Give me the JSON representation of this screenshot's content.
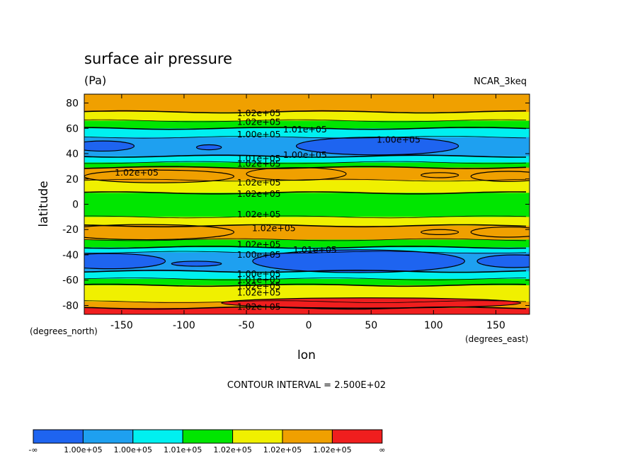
{
  "chart_data": {
    "type": "contour",
    "title": "surface air pressure",
    "units": "(Pa)",
    "dataset": "NCAR_3keq",
    "xlabel": "lon",
    "ylabel": "latitude",
    "x_unit_label": "(degrees_east)",
    "y_unit_label": "(degrees_north)",
    "xlim": [
      -180,
      177
    ],
    "ylim": [
      -87,
      87
    ],
    "x_ticks": [
      -150,
      -100,
      -50,
      0,
      50,
      100,
      150
    ],
    "y_ticks": [
      -80,
      -60,
      -40,
      -20,
      0,
      20,
      40,
      60,
      80
    ],
    "contour_interval_text": "CONTOUR INTERVAL = 2.500E+02",
    "legend": {
      "colors": [
        "#1e64f0",
        "#1ea0f0",
        "#00f0f0",
        "#00e600",
        "#f0f000",
        "#f0a000",
        "#f01e1e"
      ],
      "labels": [
        "-∞",
        "1.00e+05",
        "1.00e+05",
        "1.01e+05",
        "1.02e+05",
        "1.02e+05",
        "1.02e+05",
        "∞"
      ]
    },
    "zonal_bands": [
      {
        "lat_from": 87,
        "lat_to": 73,
        "level": 5
      },
      {
        "lat_from": 73,
        "lat_to": 66,
        "level": 4
      },
      {
        "lat_from": 66,
        "lat_to": 60,
        "level": 3
      },
      {
        "lat_from": 60,
        "lat_to": 53,
        "level": 2
      },
      {
        "lat_from": 53,
        "lat_to": 38,
        "level": 1
      },
      {
        "lat_from": 38,
        "lat_to": 33,
        "level": 2
      },
      {
        "lat_from": 33,
        "lat_to": 29,
        "level": 3
      },
      {
        "lat_from": 29,
        "lat_to": 19,
        "level": 5
      },
      {
        "lat_from": 19,
        "lat_to": 9,
        "level": 4
      },
      {
        "lat_from": 9,
        "lat_to": -10,
        "level": 3
      },
      {
        "lat_from": -10,
        "lat_to": -17,
        "level": 4
      },
      {
        "lat_from": -17,
        "lat_to": -28,
        "level": 5
      },
      {
        "lat_from": -28,
        "lat_to": -34,
        "level": 3
      },
      {
        "lat_from": -34,
        "lat_to": -38,
        "level": 2
      },
      {
        "lat_from": -38,
        "lat_to": -53,
        "level": 1
      },
      {
        "lat_from": -53,
        "lat_to": -59,
        "level": 2
      },
      {
        "lat_from": -59,
        "lat_to": -64,
        "level": 3
      },
      {
        "lat_from": -64,
        "lat_to": -77,
        "level": 4
      },
      {
        "lat_from": -77,
        "lat_to": -82,
        "level": 5
      },
      {
        "lat_from": -82,
        "lat_to": -87,
        "level": 6
      }
    ],
    "blobs": [
      {
        "lon": -165,
        "lat": 46,
        "rlon": 25,
        "rlat": 4,
        "level": 0
      },
      {
        "lon": 55,
        "lat": 46,
        "rlon": 65,
        "rlat": 7,
        "level": 0
      },
      {
        "lon": -80,
        "lat": 45,
        "rlon": 10,
        "rlat": 2,
        "level": 0
      },
      {
        "lon": -160,
        "lat": -45,
        "rlon": 45,
        "rlat": 6,
        "level": 0
      },
      {
        "lon": 40,
        "lat": -45,
        "rlon": 85,
        "rlat": 9,
        "level": 0
      },
      {
        "lon": 165,
        "lat": -45,
        "rlon": 30,
        "rlat": 5,
        "level": 0
      },
      {
        "lon": -90,
        "lat": -47,
        "rlon": 20,
        "rlat": 2,
        "level": 0
      },
      {
        "lon": -120,
        "lat": 22,
        "rlon": 60,
        "rlat": 5,
        "level": 5
      },
      {
        "lon": -10,
        "lat": 24,
        "rlon": 40,
        "rlat": 5,
        "level": 5
      },
      {
        "lon": 105,
        "lat": 23,
        "rlon": 15,
        "rlat": 2,
        "level": 5
      },
      {
        "lon": 160,
        "lat": 22,
        "rlon": 30,
        "rlat": 4,
        "level": 5
      },
      {
        "lon": -130,
        "lat": -22,
        "rlon": 70,
        "rlat": 6,
        "level": 5
      },
      {
        "lon": 105,
        "lat": -22,
        "rlon": 15,
        "rlat": 2,
        "level": 5
      },
      {
        "lon": 160,
        "lat": -22,
        "rlon": 30,
        "rlat": 4,
        "level": 5
      },
      {
        "lon": 50,
        "lat": -78,
        "rlon": 120,
        "rlat": 4,
        "level": 6
      }
    ],
    "contour_labels": [
      {
        "text": "1.02e+05",
        "lon": -40,
        "lat": 72
      },
      {
        "text": "1.02e+05",
        "lon": -40,
        "lat": 65
      },
      {
        "text": "1.00e+05",
        "lon": -40,
        "lat": 55
      },
      {
        "text": "1.01e+05",
        "lon": -3,
        "lat": 59
      },
      {
        "text": "1.00e+05",
        "lon": 72,
        "lat": 51
      },
      {
        "text": "1.00e+05",
        "lon": -3,
        "lat": 39
      },
      {
        "text": "1.01e+05",
        "lon": -40,
        "lat": 36
      },
      {
        "text": "1.02e+05",
        "lon": -40,
        "lat": 32
      },
      {
        "text": "1.02e+05",
        "lon": -138,
        "lat": 25
      },
      {
        "text": "1.02e+05",
        "lon": -40,
        "lat": 17
      },
      {
        "text": "1.02e+05",
        "lon": -40,
        "lat": 8
      },
      {
        "text": "1.02e+05",
        "lon": -40,
        "lat": -8
      },
      {
        "text": "1.02e+05",
        "lon": -28,
        "lat": -19
      },
      {
        "text": "1.02e+05",
        "lon": -40,
        "lat": -32
      },
      {
        "text": "1.00e+05",
        "lon": -40,
        "lat": -40
      },
      {
        "text": "1.01e+05",
        "lon": 5,
        "lat": -36
      },
      {
        "text": "1.00e+05",
        "lon": -40,
        "lat": -55
      },
      {
        "text": "1.01e+05",
        "lon": -40,
        "lat": -60
      },
      {
        "text": "1.02e+05",
        "lon": -40,
        "lat": -65
      },
      {
        "text": "1.02e+05",
        "lon": -40,
        "lat": -70
      },
      {
        "text": "1.02e+05",
        "lon": -40,
        "lat": -81
      }
    ]
  }
}
